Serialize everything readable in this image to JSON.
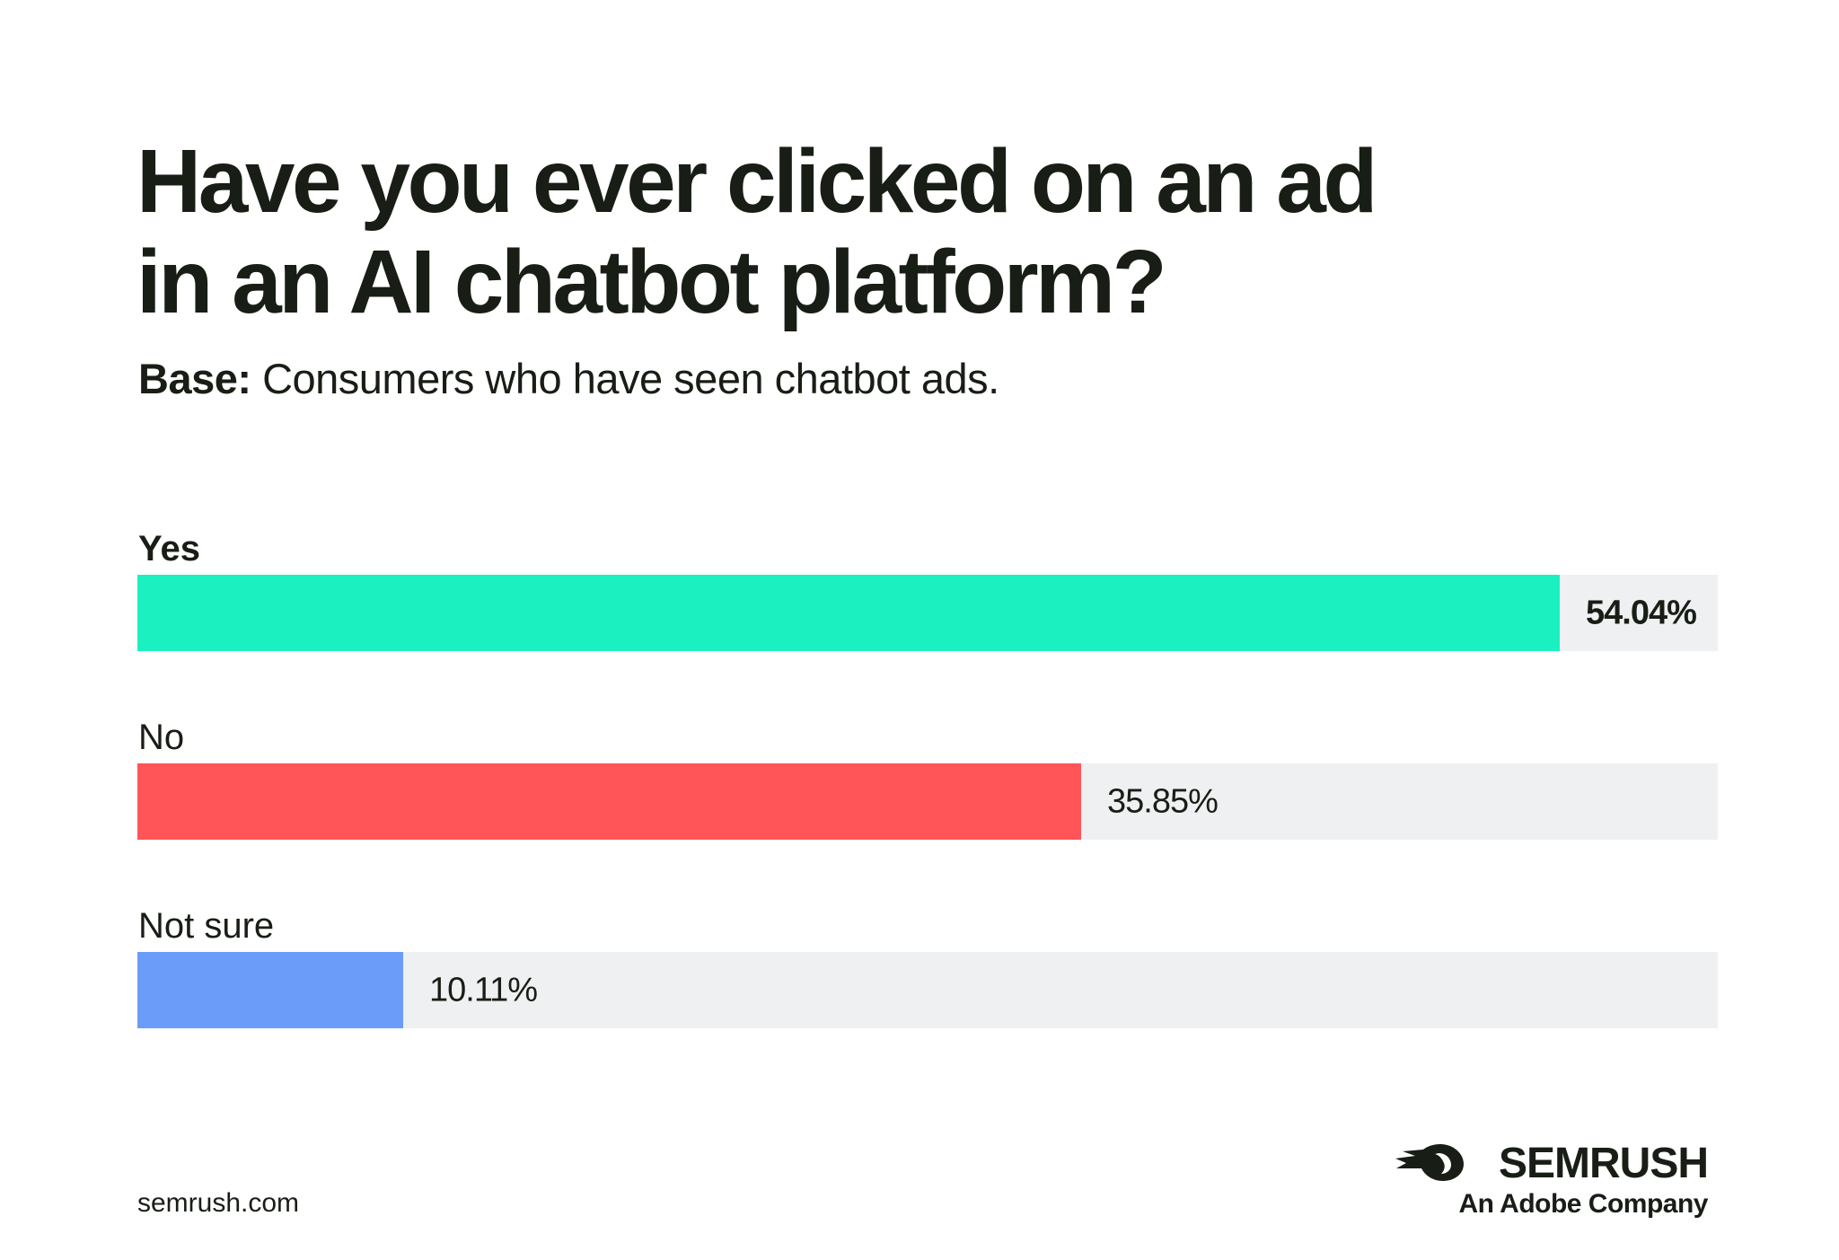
{
  "colors": {
    "text": "#181e15",
    "track": "#eff0f2",
    "yes": "#1bf0c0",
    "no": "#ff5558",
    "not_sure": "#6b9cfa"
  },
  "title_line1": "Have you ever clicked on an ad",
  "title_line2": "in an AI chatbot platform?",
  "subtitle": {
    "label": "Base:",
    "text": " Consumers who have seen chatbot ads."
  },
  "chart_data": {
    "type": "bar",
    "orientation": "horizontal",
    "categories": [
      "Yes",
      "No",
      "Not sure"
    ],
    "values": [
      54.04,
      35.85,
      10.11
    ],
    "value_labels": [
      "54.04%",
      "35.85%",
      "10.11%"
    ],
    "colors": [
      "#1bf0c0",
      "#ff5558",
      "#6b9cfa"
    ],
    "xlim": [
      0,
      60.06
    ],
    "unit": "%",
    "grid": false,
    "legend": "none"
  },
  "footer": {
    "url": "semrush.com",
    "brand_name": "SEMRUSH",
    "brand_tagline": "An Adobe Company",
    "brand_icon": "semrush-fireball-icon"
  }
}
